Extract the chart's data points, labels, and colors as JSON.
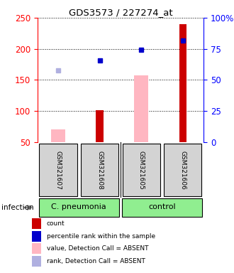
{
  "title": "GDS3573 / 227274_at",
  "samples": [
    "GSM321607",
    "GSM321608",
    "GSM321605",
    "GSM321606"
  ],
  "ylim": [
    50,
    250
  ],
  "y_ticks_left": [
    50,
    100,
    150,
    200,
    250
  ],
  "y_ticks_right": [
    0,
    25,
    50,
    75,
    100
  ],
  "count_values": [
    null,
    101,
    null,
    240
  ],
  "count_color": "#cc0000",
  "absent_value_bars": [
    70,
    null,
    157,
    null
  ],
  "absent_value_color": "#ffb6c1",
  "percentile_values": [
    null,
    181,
    198,
    213
  ],
  "percentile_color": "#0000cc",
  "absent_rank_values": [
    165,
    null,
    null,
    null
  ],
  "absent_rank_color": "#b0b0e0",
  "group_label_c_pneumonia": "C. pneumonia",
  "group_label_control": "control",
  "infection_label": "infection",
  "legend_items": [
    {
      "color": "#cc0000",
      "label": "count"
    },
    {
      "color": "#0000cc",
      "label": "percentile rank within the sample"
    },
    {
      "color": "#ffb6c1",
      "label": "value, Detection Call = ABSENT"
    },
    {
      "color": "#b0b0e0",
      "label": "rank, Detection Call = ABSENT"
    }
  ],
  "sample_box_color": "#d3d3d3",
  "group_box_green": "#90ee90"
}
